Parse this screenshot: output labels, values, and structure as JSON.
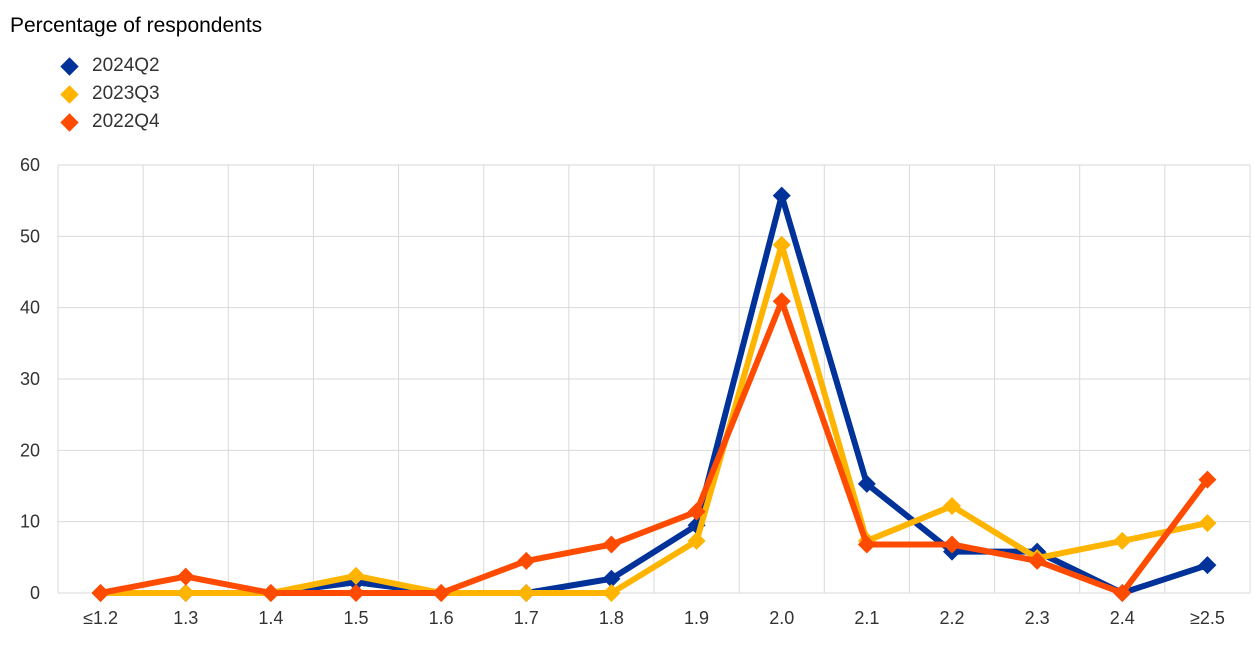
{
  "chart_data": {
    "type": "line",
    "title": "Percentage of respondents",
    "categories": [
      "≤1.2",
      "1.3",
      "1.4",
      "1.5",
      "1.6",
      "1.7",
      "1.8",
      "1.9",
      "2.0",
      "2.1",
      "2.2",
      "2.3",
      "2.4",
      "≥2.5"
    ],
    "series": [
      {
        "name": "2024Q2",
        "color": "#003299",
        "values": [
          0,
          0,
          0,
          1.5,
          0,
          0,
          2,
          9.5,
          55.7,
          15.3,
          5.8,
          5.8,
          0,
          3.9
        ]
      },
      {
        "name": "2023Q3",
        "color": "#FFB400",
        "values": [
          0,
          0,
          0,
          2.4,
          0,
          0,
          0,
          7.3,
          48.8,
          7.3,
          12.2,
          4.9,
          7.3,
          9.8
        ]
      },
      {
        "name": "2022Q4",
        "color": "#FF4B00",
        "values": [
          0,
          2.3,
          0,
          0,
          0,
          4.5,
          6.8,
          11.4,
          40.9,
          6.8,
          6.8,
          4.5,
          0,
          15.9
        ]
      }
    ],
    "ylim": [
      0,
      60
    ],
    "yticks": [
      0,
      10,
      20,
      30,
      40,
      50,
      60
    ],
    "grid": true,
    "legend_position": "top-left"
  }
}
